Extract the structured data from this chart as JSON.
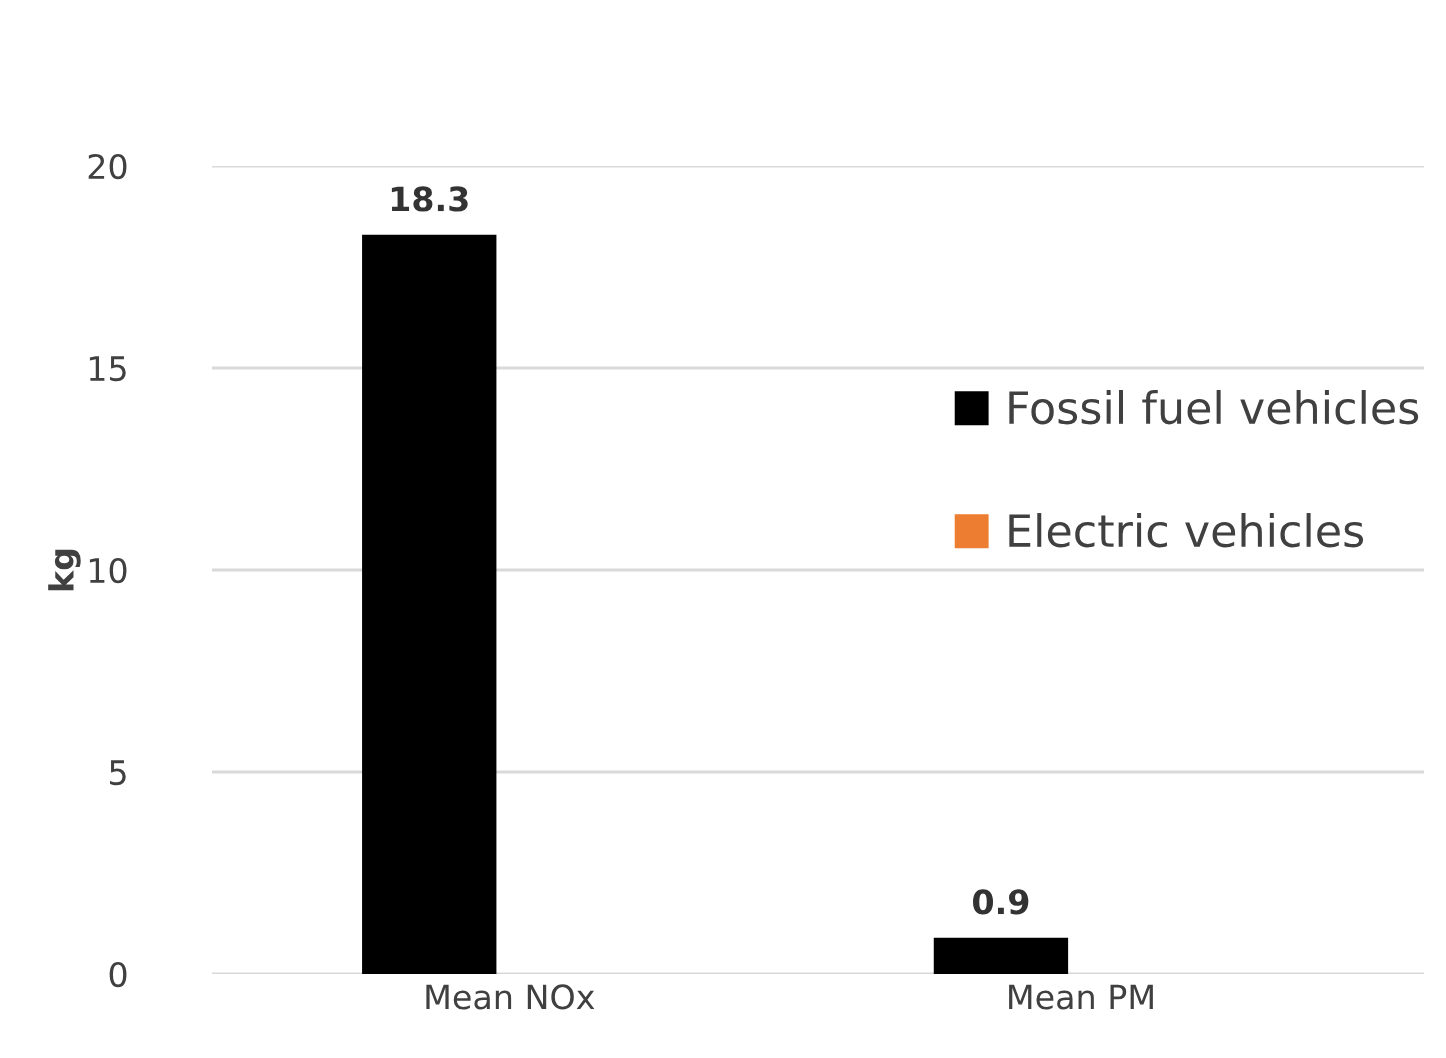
{
  "chart_data": {
    "type": "bar",
    "ylabel": "kg",
    "categories": [
      "Mean NOx",
      "Mean PM"
    ],
    "series": [
      {
        "name": "Fossil fuel vehicles",
        "color": "#000000",
        "values": [
          18.3,
          0.9
        ]
      },
      {
        "name": "Electric vehicles",
        "color": "#ed7d31",
        "values": [
          null,
          null
        ]
      }
    ],
    "ylim": [
      0,
      20
    ],
    "yticks": [
      0,
      5,
      10,
      15,
      20
    ],
    "grid": "y",
    "legend": "right",
    "data_labels": true
  }
}
